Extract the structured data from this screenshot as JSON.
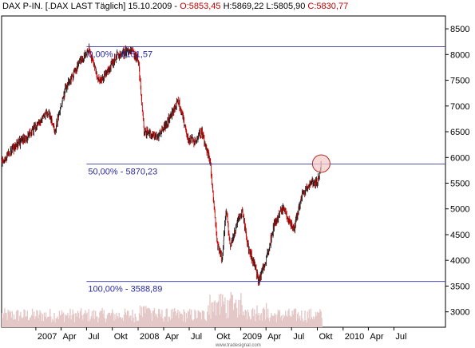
{
  "header": {
    "symbol": "DAX P-IN. [.DAX LAST Täglich] 15.10.2009",
    "open": "O:5853,45",
    "high": "H:5869,22",
    "low": "L:5805,90",
    "close": "C:5830,77"
  },
  "watermark": "www.tradesignal.com",
  "colors": {
    "up": "#1a1a1a",
    "down": "#cc0000",
    "fib_line": "#3a3aa8",
    "fib_text": "#2a2aa0",
    "volume": "#e4c8c8",
    "circle_fill": "#f6c8c8",
    "circle_stroke": "#b03030"
  },
  "chart_data": {
    "type": "line",
    "title": "DAX P-IN. [.DAX LAST Täglich]",
    "y_axis_side": "right",
    "ylim": [
      2700,
      8750
    ],
    "y_ticks": [
      3000,
      3500,
      4000,
      4500,
      5000,
      5500,
      6000,
      6500,
      7000,
      7500,
      8000,
      8500
    ],
    "y_tick_labels": [
      "3000",
      "3500",
      "4000",
      "4500",
      "5000",
      "5500",
      "6000",
      "6500",
      "7000",
      "7500",
      "8000",
      "8500"
    ],
    "x_range": [
      "2006-09-01",
      "2011-01-01"
    ],
    "x_ticks": [
      {
        "date": "2007-01-01",
        "label": "2007"
      },
      {
        "date": "2007-04-01",
        "label": "Apr"
      },
      {
        "date": "2007-07-01",
        "label": "Jul"
      },
      {
        "date": "2007-10-01",
        "label": "Okt"
      },
      {
        "date": "2008-01-01",
        "label": "2008"
      },
      {
        "date": "2008-04-01",
        "label": "Apr"
      },
      {
        "date": "2008-07-01",
        "label": "Jul"
      },
      {
        "date": "2008-10-01",
        "label": "Okt"
      },
      {
        "date": "2009-01-01",
        "label": "2009"
      },
      {
        "date": "2009-04-01",
        "label": "Apr"
      },
      {
        "date": "2009-07-01",
        "label": "Jul"
      },
      {
        "date": "2009-10-01",
        "label": "Okt"
      },
      {
        "date": "2010-01-01",
        "label": "2010"
      },
      {
        "date": "2010-04-01",
        "label": "Apr"
      },
      {
        "date": "2010-07-01",
        "label": "Jul"
      }
    ],
    "series": [
      {
        "values": [
          {
            "x": "2006-09-01",
            "y": 5900
          },
          {
            "x": "2006-10-15",
            "y": 6200
          },
          {
            "x": "2006-12-01",
            "y": 6400
          },
          {
            "x": "2007-01-15",
            "y": 6700
          },
          {
            "x": "2007-02-15",
            "y": 6900
          },
          {
            "x": "2007-03-10",
            "y": 6500
          },
          {
            "x": "2007-04-15",
            "y": 7300
          },
          {
            "x": "2007-06-01",
            "y": 7800
          },
          {
            "x": "2007-07-10",
            "y": 8100
          },
          {
            "x": "2007-08-15",
            "y": 7450
          },
          {
            "x": "2007-09-15",
            "y": 7700
          },
          {
            "x": "2007-10-20",
            "y": 8000
          },
          {
            "x": "2007-12-05",
            "y": 8080
          },
          {
            "x": "2008-01-02",
            "y": 7900
          },
          {
            "x": "2008-01-22",
            "y": 6500
          },
          {
            "x": "2008-03-10",
            "y": 6400
          },
          {
            "x": "2008-04-15",
            "y": 6700
          },
          {
            "x": "2008-05-25",
            "y": 7100
          },
          {
            "x": "2008-06-25",
            "y": 6400
          },
          {
            "x": "2008-07-20",
            "y": 6300
          },
          {
            "x": "2008-08-15",
            "y": 6500
          },
          {
            "x": "2008-09-15",
            "y": 5900
          },
          {
            "x": "2008-10-10",
            "y": 4300
          },
          {
            "x": "2008-10-27",
            "y": 4000
          },
          {
            "x": "2008-11-10",
            "y": 5000
          },
          {
            "x": "2008-11-25",
            "y": 4300
          },
          {
            "x": "2008-12-20",
            "y": 4700
          },
          {
            "x": "2009-01-06",
            "y": 5000
          },
          {
            "x": "2009-01-25",
            "y": 4300
          },
          {
            "x": "2009-02-20",
            "y": 3900
          },
          {
            "x": "2009-03-06",
            "y": 3589
          },
          {
            "x": "2009-04-01",
            "y": 4000
          },
          {
            "x": "2009-05-01",
            "y": 4700
          },
          {
            "x": "2009-06-01",
            "y": 5000
          },
          {
            "x": "2009-07-10",
            "y": 4600
          },
          {
            "x": "2009-08-10",
            "y": 5300
          },
          {
            "x": "2009-09-10",
            "y": 5500
          },
          {
            "x": "2009-10-02",
            "y": 5500
          },
          {
            "x": "2009-10-15",
            "y": 5830
          }
        ]
      }
    ],
    "fibonacci_levels": [
      {
        "label": "0,00% - 8151,57",
        "value": 8151.57,
        "x_start": "2007-07-01"
      },
      {
        "label": "50,00% - 5870,23",
        "value": 5870.23,
        "x_start": "2007-07-01"
      },
      {
        "label": "100,00% - 3588,89",
        "value": 3588.89,
        "x_start": "2007-07-01"
      }
    ],
    "highlight_circle": {
      "x": "2009-10-15",
      "y": 5880
    },
    "volume_bars": true,
    "grid": false
  }
}
